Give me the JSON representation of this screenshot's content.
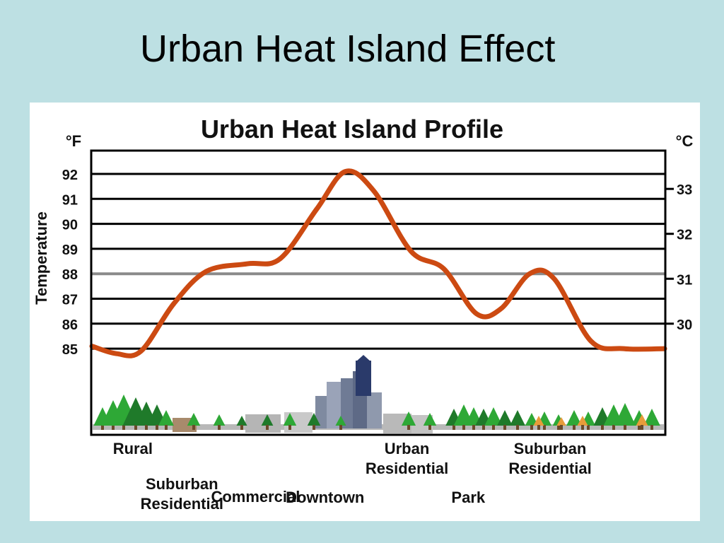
{
  "slide": {
    "title": "Urban Heat Island Effect"
  },
  "chart_data": {
    "type": "line",
    "title": "Urban Heat Island Profile",
    "ylabel": "Temperature",
    "left_unit": "°F",
    "right_unit": "°C",
    "left_ticks": [
      92,
      91,
      90,
      89,
      88,
      87,
      86,
      85
    ],
    "right_ticks": [
      33,
      32,
      31,
      30
    ],
    "ylim": [
      85,
      93
    ],
    "grid": true,
    "series": [
      {
        "color": "#cc4a12",
        "points": [
          {
            "x": 0.0,
            "y": 85.1
          },
          {
            "x": 0.3,
            "y": 84.8
          },
          {
            "x": 0.6,
            "y": 84.9
          },
          {
            "x": 1.0,
            "y": 86.8
          },
          {
            "x": 1.4,
            "y": 88.1
          },
          {
            "x": 1.9,
            "y": 88.4
          },
          {
            "x": 2.3,
            "y": 88.6
          },
          {
            "x": 2.75,
            "y": 90.6
          },
          {
            "x": 3.1,
            "y": 92.1
          },
          {
            "x": 3.45,
            "y": 91.3
          },
          {
            "x": 3.9,
            "y": 88.9
          },
          {
            "x": 4.3,
            "y": 88.2
          },
          {
            "x": 4.7,
            "y": 86.4
          },
          {
            "x": 5.0,
            "y": 86.6
          },
          {
            "x": 5.35,
            "y": 88.0
          },
          {
            "x": 5.65,
            "y": 87.8
          },
          {
            "x": 6.1,
            "y": 85.3
          },
          {
            "x": 6.5,
            "y": 85.0
          },
          {
            "x": 7.0,
            "y": 85.0
          }
        ]
      }
    ],
    "zones": [
      {
        "label": [
          "Rural"
        ],
        "x": 0.5
      },
      {
        "label": [
          "Suburban",
          "Residential"
        ],
        "x": 1.1
      },
      {
        "label": [
          "Commercial"
        ],
        "x": 2.0
      },
      {
        "label": [
          "Downtown"
        ],
        "x": 2.85
      },
      {
        "label": [
          "Urban",
          "Residential"
        ],
        "x": 3.85
      },
      {
        "label": [
          "Park"
        ],
        "x": 4.6
      },
      {
        "label": [
          "Suburban",
          "Residential"
        ],
        "x": 5.6
      }
    ],
    "colors": {
      "curve": "#cc4a12",
      "grid": "#000000",
      "grid_88": "#8a8a8a",
      "tree": "#2ea836",
      "tree_dark": "#1f7a2a",
      "tree_orange": "#e79c3a",
      "building": "#8c96aa",
      "building_dark": "#2a3a6a"
    }
  }
}
